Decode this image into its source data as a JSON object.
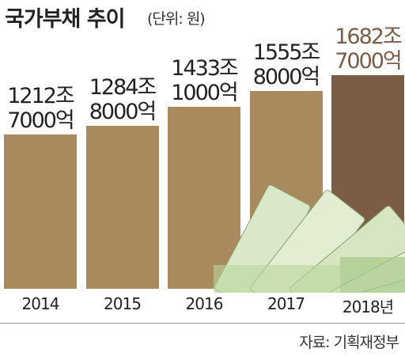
{
  "chart_data": {
    "type": "bar",
    "title": "국가부채 추이",
    "subtitle": "(단위: 원)",
    "source": "자료: 기획재정부",
    "categories": [
      "2014",
      "2015",
      "2016",
      "2017",
      "2018년"
    ],
    "values": [
      1212.7,
      1284.8,
      1433.1,
      1555.8,
      1682.7
    ],
    "value_labels": [
      "1212조\n7000억",
      "1284조\n8000억",
      "1433조\n1000억",
      "1555조\n8000억",
      "1682조\n7000억"
    ],
    "colors": [
      "#a88a5e",
      "#a88a5e",
      "#a88a5e",
      "#a88a5e",
      "#7b5d47"
    ]
  }
}
